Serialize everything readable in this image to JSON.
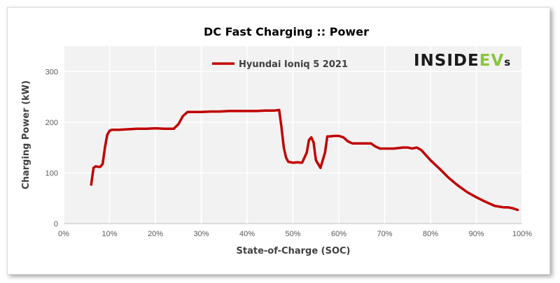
{
  "chart_data": {
    "type": "line",
    "title": "DC Fast Charging :: Power",
    "xlabel": "State-of-Charge  (SOC)",
    "ylabel": "Charging Power (kW)",
    "xlim": [
      0,
      100
    ],
    "ylim": [
      0,
      350
    ],
    "x_ticks": [
      "0%",
      "10%",
      "20%",
      "30%",
      "40%",
      "50%",
      "60%",
      "70%",
      "80%",
      "90%",
      "100%"
    ],
    "y_ticks": [
      "0",
      "100",
      "200",
      "300"
    ],
    "grid": true,
    "legend_position": "top",
    "series": [
      {
        "name": "Hyundai Ioniq 5 2021",
        "color": "#c00000",
        "x": [
          6,
          6.5,
          7,
          7.5,
          8,
          8.5,
          9,
          9.5,
          10,
          10.5,
          11,
          12,
          14,
          16,
          18,
          20,
          22,
          23,
          24,
          25,
          26,
          27,
          28,
          30,
          32,
          34,
          36,
          38,
          40,
          42,
          44,
          45,
          46,
          47,
          47.5,
          48,
          48.5,
          49,
          50,
          51,
          52,
          53,
          53.5,
          54,
          54.5,
          55,
          56,
          57,
          57.5,
          58,
          59,
          60,
          61,
          62,
          63,
          64,
          66,
          67,
          68,
          69,
          70,
          72,
          74,
          75,
          76,
          77,
          78,
          80,
          82,
          84,
          86,
          88,
          90,
          92,
          94,
          96,
          97,
          98,
          99
        ],
        "values": [
          77,
          110,
          113,
          112,
          112,
          118,
          150,
          175,
          183,
          185,
          185,
          185,
          186,
          187,
          187,
          188,
          187,
          187,
          187,
          196,
          212,
          220,
          220,
          220,
          221,
          221,
          222,
          222,
          222,
          222,
          223,
          223,
          223,
          224,
          190,
          150,
          130,
          122,
          120,
          121,
          120,
          140,
          165,
          170,
          160,
          125,
          110,
          140,
          172,
          172,
          173,
          173,
          170,
          162,
          158,
          158,
          158,
          158,
          152,
          148,
          148,
          148,
          150,
          150,
          148,
          150,
          145,
          125,
          108,
          90,
          75,
          62,
          52,
          43,
          35,
          32,
          32,
          30,
          27
        ]
      }
    ]
  },
  "logo": {
    "text": "INSIDEEVs",
    "part1": "INSIDE",
    "part2": "EV",
    "part3": "s",
    "accent_color": "#8bc53f"
  }
}
